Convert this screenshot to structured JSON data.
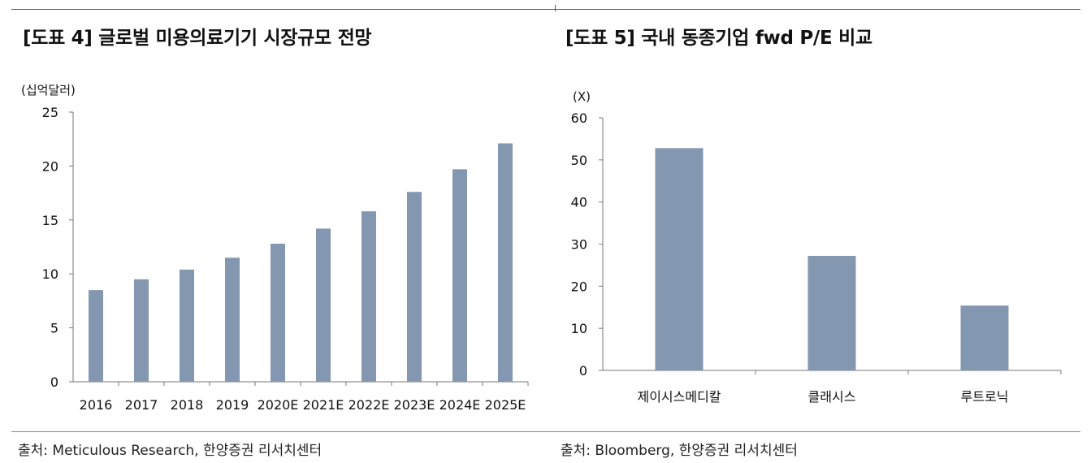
{
  "charts": [
    {
      "title": "[도표 4] 글로벌 미용의료기기 시장규모 전망",
      "source": "출처: Meticulous Research, 한양증권 리서치센터",
      "chart_data": {
        "type": "bar",
        "unit_label": "(십억달러)",
        "categories": [
          "2016",
          "2017",
          "2018",
          "2019",
          "2020E",
          "2021E",
          "2022E",
          "2023E",
          "2024E",
          "2025E"
        ],
        "values": [
          8.5,
          9.5,
          10.4,
          11.5,
          12.8,
          14.2,
          15.8,
          17.6,
          19.7,
          22.1
        ],
        "yticks": [
          "0",
          "5",
          "10",
          "15",
          "20",
          "25"
        ],
        "ylim": [
          0,
          25
        ],
        "bar_color": "#8497b0"
      }
    },
    {
      "title": "[도표 5] 국내 동종기업 fwd P/E 비교",
      "source": "출처: Bloomberg, 한양증권 리서치센터",
      "chart_data": {
        "type": "bar",
        "unit_label": "(X)",
        "categories": [
          "제이시스메디칼",
          "클래시스",
          "루트로닉"
        ],
        "values": [
          52.8,
          27.2,
          15.4
        ],
        "yticks": [
          "0",
          "10",
          "20",
          "30",
          "40",
          "50",
          "60"
        ],
        "ylim": [
          0,
          60
        ],
        "bar_color": "#8497b0"
      }
    }
  ]
}
